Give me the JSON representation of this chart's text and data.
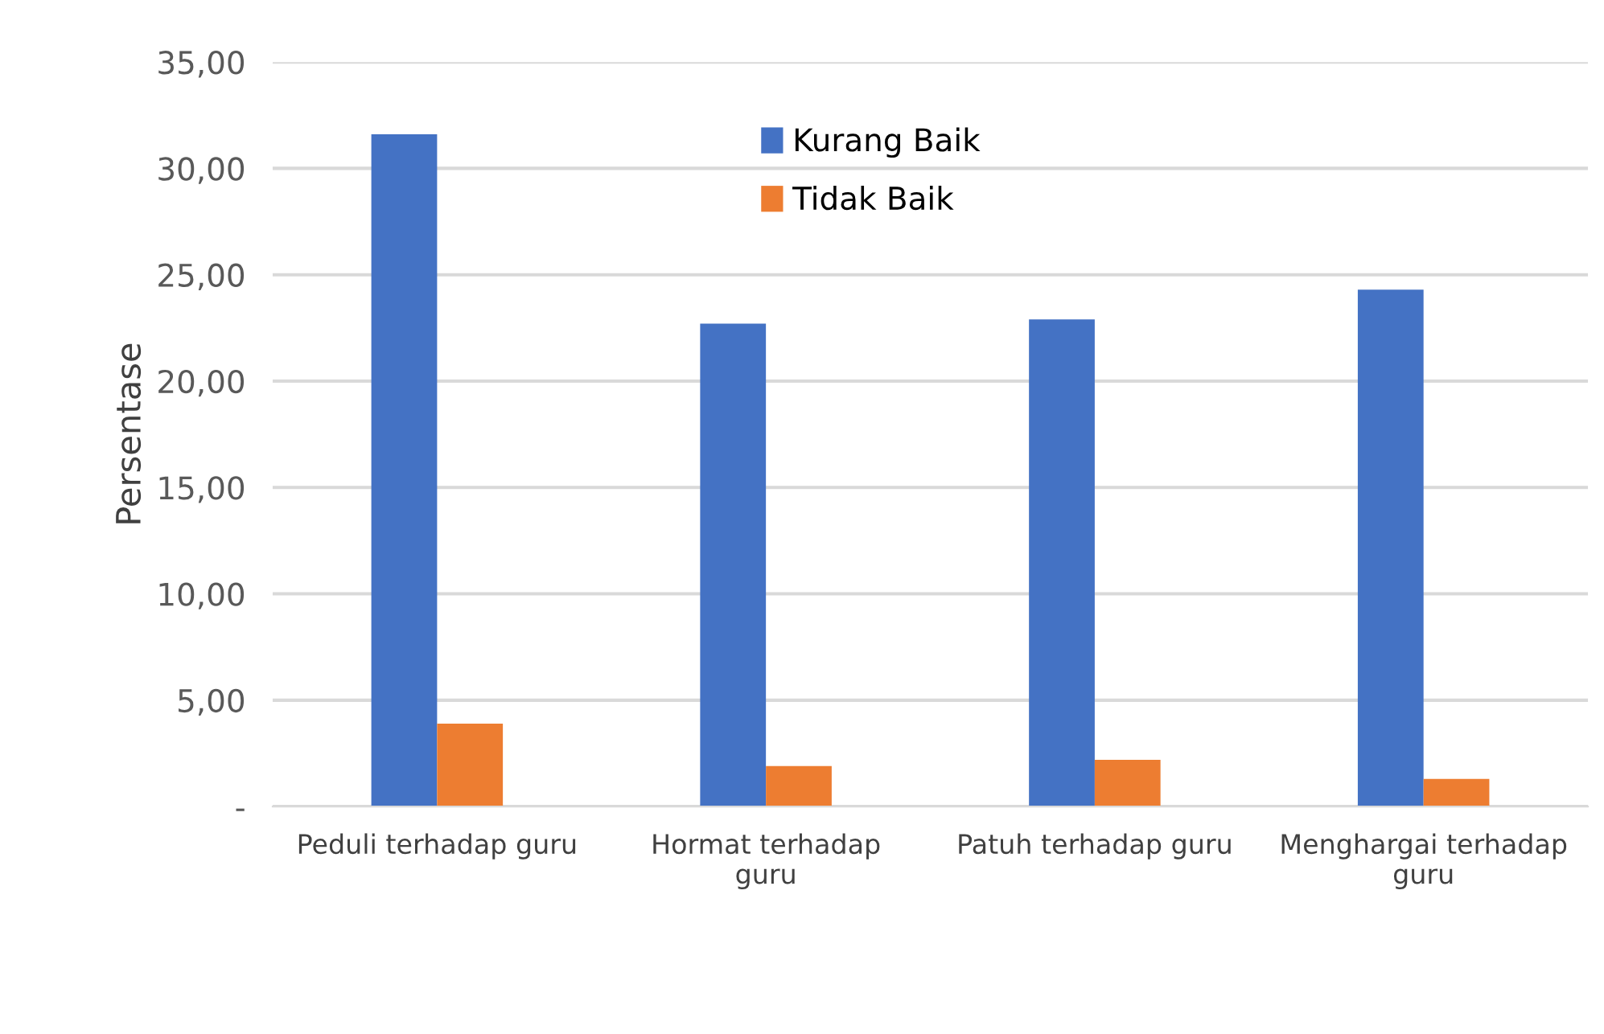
{
  "chart_data": {
    "type": "bar",
    "ylabel": "Persentase",
    "categories": [
      "Peduli terhadap guru",
      "Hormat terhadap\nguru",
      "Patuh terhadap guru",
      "Menghargai terhadap\nguru"
    ],
    "series": [
      {
        "name": "Kurang Baik",
        "color": "#4472c4",
        "values": [
          31.6,
          22.7,
          22.9,
          24.3
        ]
      },
      {
        "name": "Tidak Baik",
        "color": "#ed7d31",
        "values": [
          3.9,
          1.9,
          2.2,
          1.3
        ]
      }
    ],
    "ylim": [
      0,
      35
    ],
    "yticks": [
      {
        "value": 0,
        "label": "-"
      },
      {
        "value": 5,
        "label": "5,00"
      },
      {
        "value": 10,
        "label": "10,00"
      },
      {
        "value": 15,
        "label": "15,00"
      },
      {
        "value": 20,
        "label": "20,00"
      },
      {
        "value": 25,
        "label": "25,00"
      },
      {
        "value": 30,
        "label": "30,00"
      },
      {
        "value": 35,
        "label": "35,00"
      }
    ],
    "grid": "y",
    "legend": "top"
  }
}
